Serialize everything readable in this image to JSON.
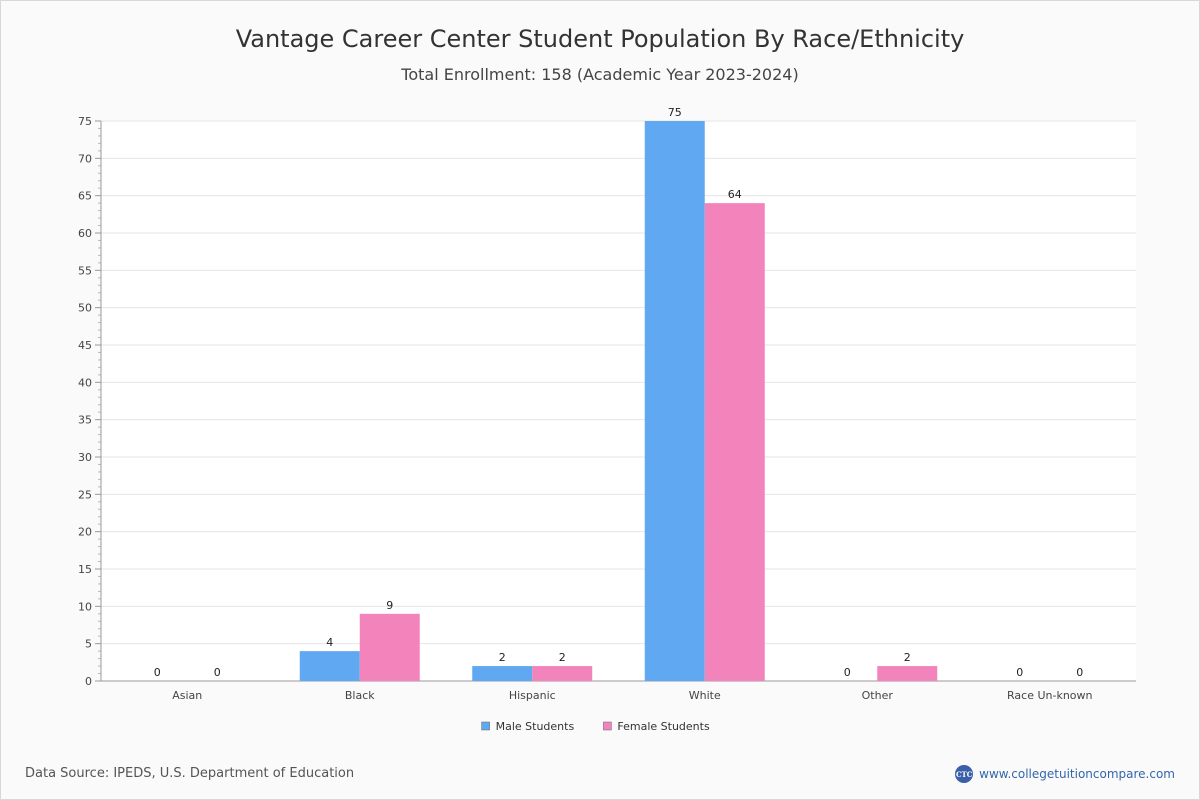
{
  "chart_data": {
    "type": "bar",
    "title": "Vantage Career Center Student Population By Race/Ethnicity",
    "subtitle": "Total Enrollment: 158 (Academic Year 2023-2024)",
    "categories": [
      "Asian",
      "Black",
      "Hispanic",
      "White",
      "Other",
      "Race Un-known"
    ],
    "series": [
      {
        "name": "Male Students",
        "color": "#60a8f2",
        "values": [
          0,
          4,
          2,
          75,
          0,
          0
        ]
      },
      {
        "name": "Female Students",
        "color": "#f283bb",
        "values": [
          0,
          9,
          2,
          64,
          2,
          0
        ]
      }
    ],
    "ylim": [
      0,
      75
    ],
    "yticks": [
      0,
      5,
      10,
      15,
      20,
      25,
      30,
      35,
      40,
      45,
      50,
      55,
      60,
      65,
      70,
      75
    ],
    "grid": true,
    "legend_position": "bottom-center"
  },
  "footer": {
    "source": "Data Source: IPEDS, U.S. Department of Education",
    "brand_url": "www.collegetuitioncompare.com",
    "brand_logo_text": "CTC"
  }
}
